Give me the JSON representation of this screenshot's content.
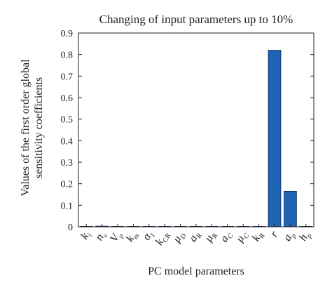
{
  "chart_data": {
    "type": "bar",
    "title": "Changing of input parameters up to 10%",
    "xlabel": "PC model parameters",
    "ylabel_lines": [
      "Values of the first order global",
      "sensitivity coefficients"
    ],
    "ylim": [
      0,
      0.9
    ],
    "yticks": [
      "0",
      "0.1",
      "0.2",
      "0.3",
      "0.4",
      "0.5",
      "0.6",
      "0.7",
      "0.8",
      "0.9"
    ],
    "categories": [
      {
        "base": "k",
        "sub": "i"
      },
      {
        "base": "n",
        "sub": "v"
      },
      {
        "base": "V",
        "sub": "p"
      },
      {
        "base": "k",
        "sub": "m"
      },
      {
        "base": "α",
        "sub": "I"
      },
      {
        "base": "k",
        "sub": "CR"
      },
      {
        "base": "μ",
        "sub": "D"
      },
      {
        "base": "a",
        "sub": "R"
      },
      {
        "base": "μ",
        "sub": "R"
      },
      {
        "base": "a",
        "sub": "C"
      },
      {
        "base": "μ",
        "sub": "C"
      },
      {
        "base": "k",
        "sub": "R"
      },
      {
        "base": "r",
        "sub": ""
      },
      {
        "base": "a",
        "sub": "p"
      },
      {
        "base": "h",
        "sub": "p"
      }
    ],
    "values": [
      0.001,
      0.003,
      0.001,
      0.001,
      0.001,
      0.001,
      0.0,
      0.0,
      0.0,
      0.001,
      0.001,
      0.001,
      0.82,
      0.165,
      0.002
    ],
    "bar_color": "#1f63b4",
    "bar_edge": "#0d2b57",
    "grid": false,
    "box": true
  }
}
